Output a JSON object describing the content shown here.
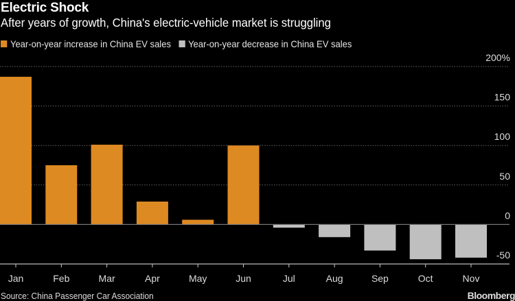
{
  "chart_data": {
    "type": "bar",
    "title": "Electric Shock",
    "subtitle": "After years of growth, China's electric-vehicle market is struggling",
    "categories": [
      "Jan",
      "Feb",
      "Mar",
      "Apr",
      "May",
      "Jun",
      "Jul",
      "Aug",
      "Sep",
      "Oct",
      "Nov"
    ],
    "values": [
      187,
      75,
      101,
      29,
      6,
      100,
      -4,
      -16,
      -33,
      -44,
      -42
    ],
    "legend": [
      {
        "label": "Year-on-year increase in China EV sales",
        "color": "#DE8A22"
      },
      {
        "label": "Year-on-year decrease in China EV sales",
        "color": "#BFBFBF"
      }
    ],
    "ylim": [
      -50,
      200
    ],
    "yticks": [
      -50,
      0,
      50,
      100,
      150,
      200
    ],
    "ytick_labels": [
      "-50",
      "0",
      "50",
      "100",
      "150",
      "200%"
    ],
    "yaxis_side": "right",
    "grid": true,
    "legend_position": "top-left",
    "source": "Source: China Passenger Car Association",
    "logo": "Bloomberg"
  }
}
